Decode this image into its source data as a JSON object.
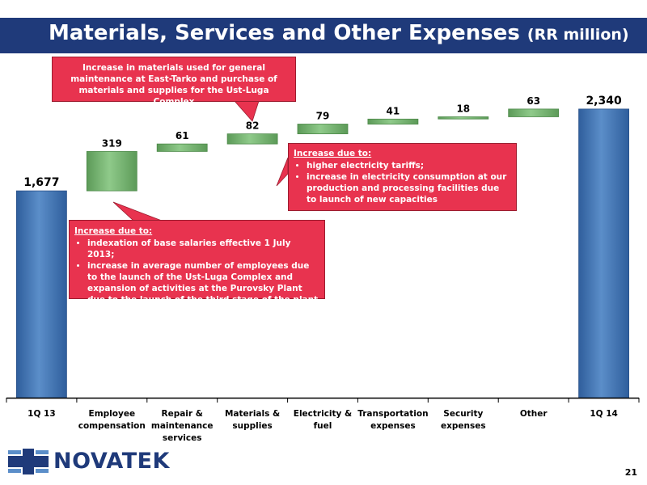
{
  "header": {
    "title": "Materials, Services and Other Expenses",
    "unit": "(RR million)"
  },
  "chart_data": {
    "type": "bar",
    "subtype": "waterfall",
    "categories": [
      "1Q 13",
      "Employee compensation",
      "Repair & maintenance services",
      "Materials & supplies",
      "Electricity & fuel",
      "Transportation expenses",
      "Security expenses",
      "Other",
      "1Q 14"
    ],
    "category_lines": [
      [
        "1Q 13"
      ],
      [
        "Employee",
        "compensation"
      ],
      [
        "Repair &",
        "maintenance",
        "services"
      ],
      [
        "Materials &",
        "supplies"
      ],
      [
        "Electricity &",
        "fuel"
      ],
      [
        "Transportation",
        "expenses"
      ],
      [
        "Security",
        "expenses"
      ],
      [
        "Other"
      ],
      [
        "1Q 14"
      ]
    ],
    "values": [
      1677,
      319,
      61,
      82,
      79,
      41,
      18,
      63,
      2340
    ],
    "labels": [
      "1,677",
      "319",
      "61",
      "82",
      "79",
      "41",
      "18",
      "63",
      "2,340"
    ],
    "bar_kinds": [
      "total",
      "delta",
      "delta",
      "delta",
      "delta",
      "delta",
      "delta",
      "delta",
      "total"
    ],
    "ylim": [
      0,
      2700
    ],
    "colors": {
      "total": "#5b8ec9",
      "delta": "#8fca8a"
    }
  },
  "callouts": {
    "materials": "Increase in materials used for general maintenance at East-Tarko and purchase of materials and supplies for the Ust-Luga Complex",
    "electricity": {
      "title": "Increase due to:",
      "items": [
        "higher electricity tariffs;",
        "increase in electricity consumption at our production and processing facilities due to launch of new capacities"
      ]
    },
    "employee": {
      "title": "Increase due to:",
      "items": [
        "indexation of base salaries effective 1 July 2013;",
        "increase in average number of employees due to the launch of the Ust-Luga Complex and expansion of activities at the Purovsky Plant due to the launch of the third stage of the plant"
      ]
    }
  },
  "footer": {
    "logo_text": "NOVATEK",
    "page_number": "21"
  }
}
